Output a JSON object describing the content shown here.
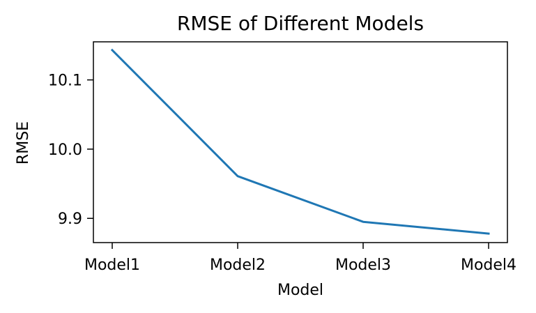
{
  "chart_data": {
    "type": "line",
    "title": "RMSE of Different Models",
    "xlabel": "Model",
    "ylabel": "RMSE",
    "categories": [
      "Model1",
      "Model2",
      "Model3",
      "Model4"
    ],
    "series": [
      {
        "values": [
          10.143,
          9.961,
          9.895,
          9.878
        ],
        "color": "#1f77b4"
      }
    ],
    "yticks": [
      9.9,
      10.0,
      10.1
    ],
    "ytick_labels": [
      "9.9",
      "10.0",
      "10.1"
    ],
    "ylim": [
      9.865,
      10.155
    ],
    "grid": false,
    "legend": "none"
  }
}
